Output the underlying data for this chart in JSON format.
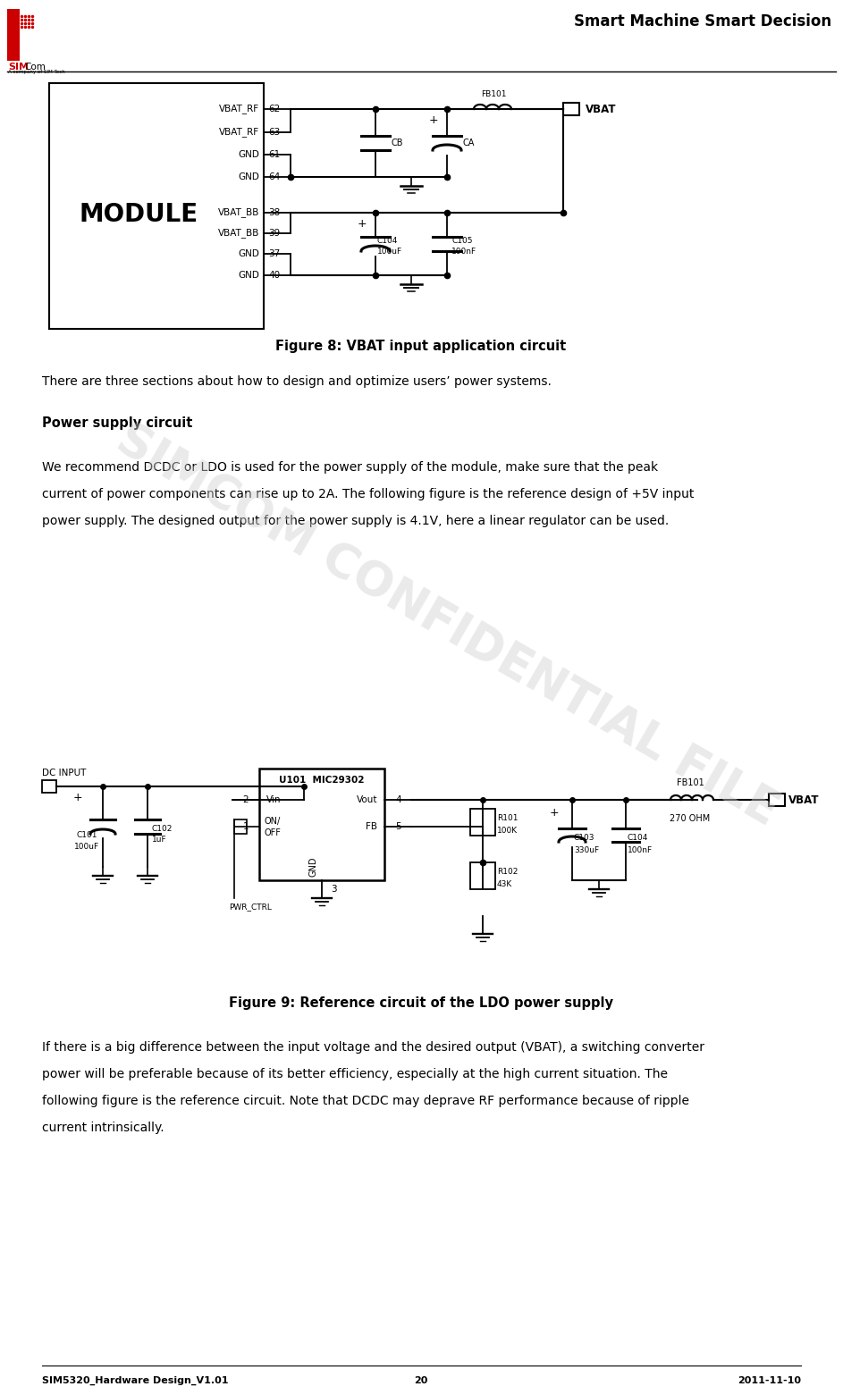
{
  "page_width": 9.43,
  "page_height": 15.61,
  "bg_color": "#ffffff",
  "header_text": "Smart Machine Smart Decision",
  "footer_left": "SIM5320_Hardware Design_V1.01",
  "footer_center": "20",
  "footer_right": "2011-11-10",
  "fig8_caption": "Figure 8: VBAT input application circuit",
  "fig9_caption": "Figure 9: Reference circuit of the LDO power supply",
  "section_heading": "Power supply circuit",
  "para1": "There are three sections about how to design and optimize users’ power systems.",
  "para2_line1": "We recommend DCDC or LDO is used for the power supply of the module, make sure that the peak",
  "para2_line2": "current of power components can rise up to 2A. The following figure is the reference design of +5V input",
  "para2_line3": "power supply. The designed output for the power supply is 4.1V, here a linear regulator can be used.",
  "para3_line1": "If there is a big difference between the input voltage and the desired output (VBAT), a switching converter",
  "para3_line2": "power will be preferable because of its better efficiency, especially at the high current situation. The",
  "para3_line3": "following figure is the reference circuit. Note that DCDC may deprave RF performance because of ripple",
  "para3_line4": "current intrinsically.",
  "confidential_text": "SIMCOM CONFIDENTIAL FILE",
  "text_color": "#000000"
}
